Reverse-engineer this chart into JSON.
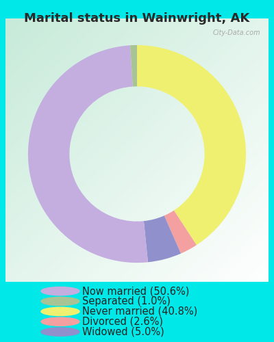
{
  "title": "Marital status in Wainwright, AK",
  "slices": [
    50.6,
    1.0,
    40.8,
    2.6,
    5.0
  ],
  "labels": [
    "Now married (50.6%)",
    "Separated (1.0%)",
    "Never married (40.8%)",
    "Divorced (2.6%)",
    "Widowed (5.0%)"
  ],
  "colors": [
    "#c4aee0",
    "#a8c494",
    "#f0f070",
    "#f4a0a0",
    "#9090cc"
  ],
  "bg_cyan": "#00e8e8",
  "chart_bg_left": "#c8e8d8",
  "chart_bg_right": "#e8f4ec",
  "title_fontsize": 13,
  "legend_fontsize": 10.5,
  "watermark": "City-Data.com",
  "donut_width": 0.38
}
